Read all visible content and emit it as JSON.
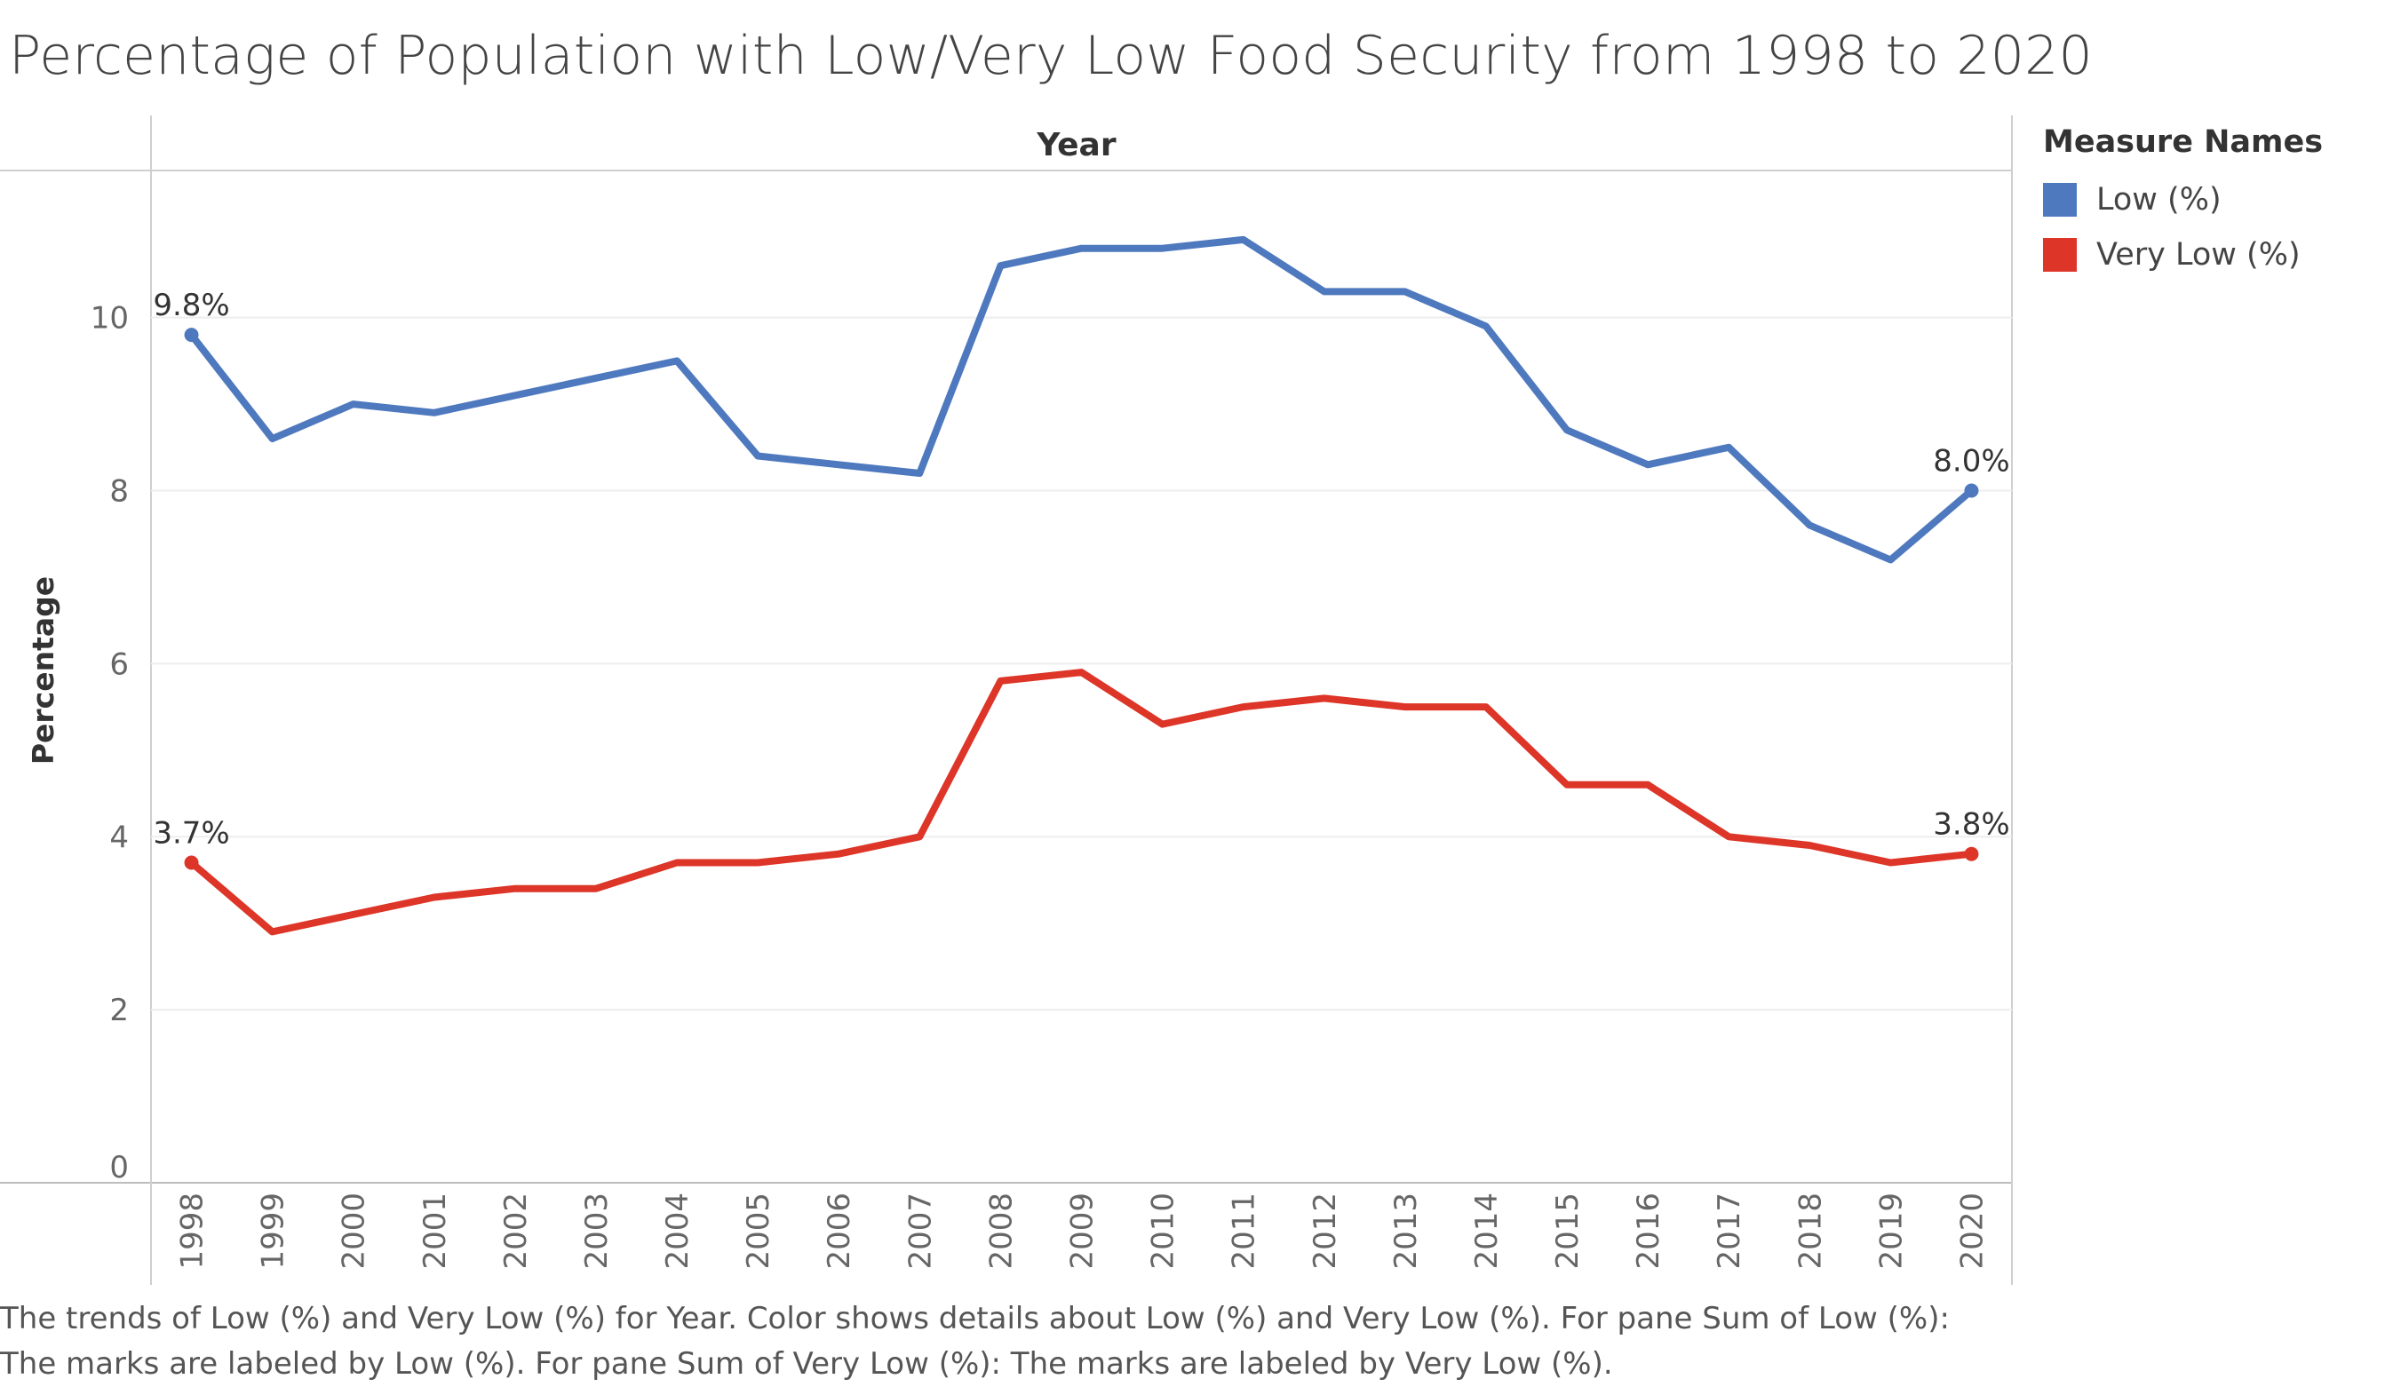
{
  "title": "Percentage of Population with Low/Very Low Food Security from 1998 to 2020",
  "chart_data": {
    "type": "line",
    "title": "Percentage of Population with Low/Very Low Food Security from 1998 to 2020",
    "column_header": "Year",
    "xlabel": "Year",
    "ylabel": "Percentage",
    "x": [
      "1998",
      "1999",
      "2000",
      "2001",
      "2002",
      "2003",
      "2004",
      "2005",
      "2006",
      "2007",
      "2008",
      "2009",
      "2010",
      "2011",
      "2012",
      "2013",
      "2014",
      "2015",
      "2016",
      "2017",
      "2018",
      "2019",
      "2020"
    ],
    "ylim": [
      0,
      11.7
    ],
    "yticks": [
      0,
      2,
      4,
      6,
      8,
      10
    ],
    "grid": true,
    "legend_title": "Measure Names",
    "legend_position": "right",
    "series": [
      {
        "name": "Low (%)",
        "color": "#4E79BE",
        "values": [
          9.8,
          8.6,
          9.0,
          8.9,
          9.1,
          9.3,
          9.5,
          8.4,
          8.3,
          8.2,
          10.6,
          10.8,
          10.8,
          10.9,
          10.3,
          10.3,
          9.9,
          8.7,
          8.3,
          8.5,
          7.6,
          7.2,
          8.0
        ],
        "labels": [
          {
            "index": 0,
            "text": "9.8%"
          },
          {
            "index": 22,
            "text": "8.0%"
          }
        ]
      },
      {
        "name": "Very Low (%)",
        "color": "#DD3528",
        "values": [
          3.7,
          2.9,
          3.1,
          3.3,
          3.4,
          3.4,
          3.7,
          3.7,
          3.8,
          4.0,
          5.8,
          5.9,
          5.3,
          5.5,
          5.6,
          5.5,
          5.5,
          4.6,
          4.6,
          4.0,
          3.9,
          3.7,
          3.8
        ],
        "labels": [
          {
            "index": 0,
            "text": "3.7%"
          },
          {
            "index": 22,
            "text": "3.8%"
          }
        ]
      }
    ]
  },
  "caption": {
    "line1": "The trends of Low (%) and Very Low (%) for Year.  Color shows details about Low (%) and Very Low (%).  For pane Sum of Low (%):",
    "line2": "The marks are labeled by Low (%).  For pane Sum of Very Low (%):  The marks are labeled by Very Low (%)."
  }
}
